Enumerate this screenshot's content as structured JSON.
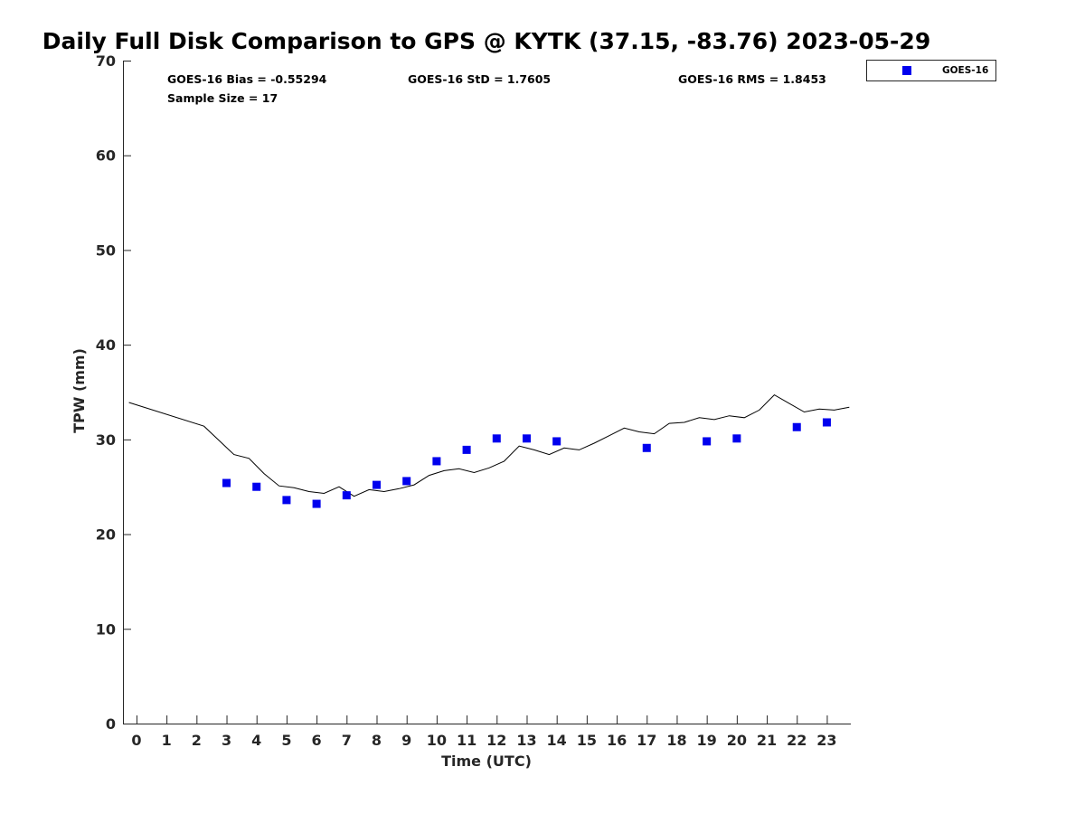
{
  "chart_data": {
    "type": "scatter",
    "title": "Daily Full Disk Comparison to GPS @ KYTK (37.15, -83.76) 2023-05-29",
    "xlabel": "Time (UTC)",
    "ylabel": "TPW (mm)",
    "xlim": [
      -0.45,
      23.8
    ],
    "ylim": [
      0,
      70
    ],
    "xticks": [
      0,
      1,
      2,
      3,
      4,
      5,
      6,
      7,
      8,
      9,
      10,
      11,
      12,
      13,
      14,
      15,
      16,
      17,
      18,
      19,
      20,
      21,
      22,
      23
    ],
    "yticks": [
      0,
      10,
      20,
      30,
      40,
      50,
      60,
      70
    ],
    "grid": false,
    "legend_position": "top-right",
    "stats": {
      "bias": "GOES-16 Bias = -0.55294",
      "std": "GOES-16 StD = 1.7605",
      "rms": "GOES-16 RMS = 1.8453",
      "sample": "Sample Size = 17"
    },
    "series": [
      {
        "name": "GOES-16",
        "kind": "scatter",
        "marker": "square",
        "color": "#0000ee",
        "x": [
          3,
          4,
          5,
          6,
          7,
          8,
          9,
          10,
          11,
          12,
          13,
          14,
          17,
          19,
          20,
          22,
          23
        ],
        "y": [
          25.4,
          25.0,
          23.6,
          23.2,
          24.1,
          25.2,
          25.6,
          27.7,
          28.9,
          30.1,
          30.1,
          29.8,
          29.1,
          29.8,
          30.1,
          31.3,
          31.8
        ]
      },
      {
        "kind": "line",
        "color": "#000000",
        "x": [
          -0.25,
          2.25,
          3.25,
          3.75,
          4.25,
          4.75,
          5.25,
          5.75,
          6.25,
          6.75,
          7.25,
          7.75,
          8.25,
          8.75,
          9.25,
          9.75,
          10.25,
          10.75,
          11.25,
          11.75,
          12.25,
          12.75,
          13.25,
          13.75,
          14.25,
          14.75,
          15.25,
          15.75,
          16.25,
          16.75,
          17.25,
          17.75,
          18.25,
          18.75,
          19.25,
          19.75,
          20.25,
          20.75,
          21.25,
          21.75,
          22.25,
          22.75,
          23.25,
          23.75
        ],
        "y": [
          33.9,
          31.4,
          28.4,
          28.0,
          26.4,
          25.1,
          24.9,
          24.5,
          24.3,
          25.0,
          24.0,
          24.7,
          24.5,
          24.8,
          25.2,
          26.2,
          26.7,
          26.9,
          26.5,
          27.0,
          27.7,
          29.3,
          28.9,
          28.4,
          29.1,
          28.9,
          29.6,
          30.4,
          31.2,
          30.8,
          30.6,
          31.7,
          31.8,
          32.3,
          32.1,
          32.5,
          32.3,
          33.1,
          34.7,
          33.8,
          32.9,
          33.2,
          33.1,
          33.4
        ]
      }
    ]
  }
}
